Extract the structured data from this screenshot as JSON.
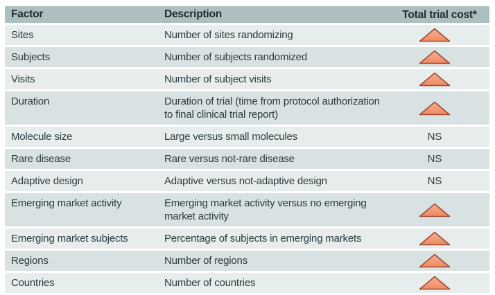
{
  "table": {
    "columns": [
      {
        "label": "Factor"
      },
      {
        "label": "Description"
      },
      {
        "label": "Total trial cost*"
      }
    ],
    "rows": [
      {
        "factor": "Sites",
        "description": "Number of sites randomizing",
        "cost": "increase"
      },
      {
        "factor": "Subjects",
        "description": "Number of subjects randomized",
        "cost": "increase"
      },
      {
        "factor": "Visits",
        "description": "Number of subject visits",
        "cost": "increase"
      },
      {
        "factor": "Duration",
        "description": "Duration of trial (time from protocol authorization to final clinical trial report)",
        "cost": "increase"
      },
      {
        "factor": "Molecule size",
        "description": "Large versus small molecules",
        "cost": "NS"
      },
      {
        "factor": "Rare disease",
        "description": "Rare versus not-rare disease",
        "cost": "NS"
      },
      {
        "factor": "Adaptive design",
        "description": "Adaptive versus not-adaptive design",
        "cost": "NS"
      },
      {
        "factor": "Emerging market activity",
        "description": "Emerging market activity versus no emerging market activity",
        "cost": "increase"
      },
      {
        "factor": "Emerging market subjects",
        "description": "Percentage of subjects in emerging markets",
        "cost": "increase"
      },
      {
        "factor": "Regions",
        "description": "Number of regions",
        "cost": "increase"
      },
      {
        "factor": "Countries",
        "description": "Number of countries",
        "cost": "increase"
      }
    ],
    "ns_label": "NS"
  },
  "colors": {
    "header_bg": "#adc0c1",
    "row_light": "#e7edec",
    "row_dark": "#d9e2e2",
    "text": "#2b3a40",
    "header_text": "#1c2a2e",
    "triangle_fill_top": "#f6b092",
    "triangle_fill_bottom": "#ee8a62",
    "triangle_stroke": "#9c4a33"
  }
}
